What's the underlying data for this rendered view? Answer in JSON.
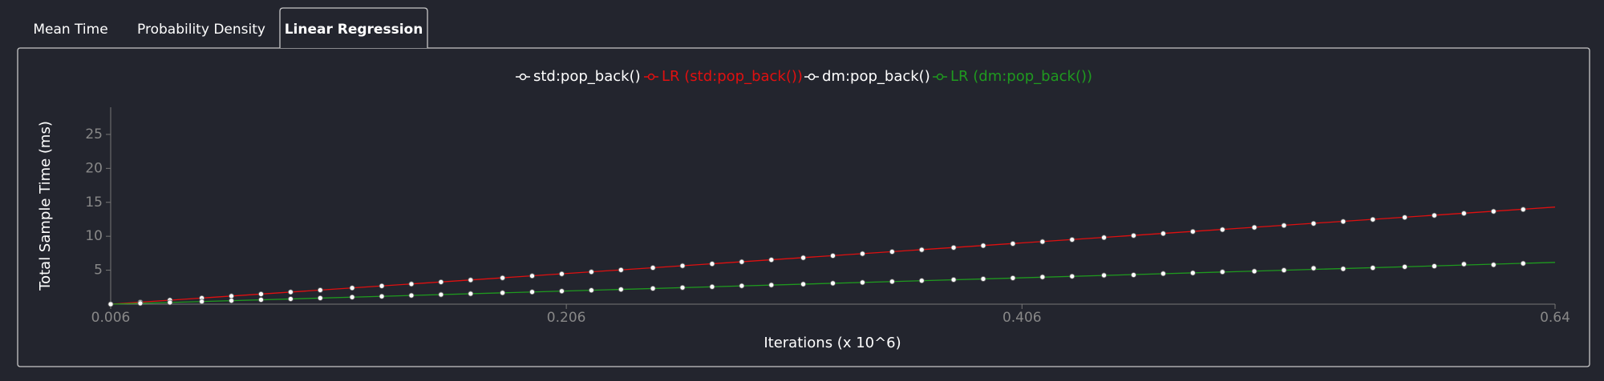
{
  "tabs": [
    "Mean Time",
    "Probability Density",
    "Linear Regression"
  ],
  "active_tab": 2,
  "chart_data": {
    "type": "scatter",
    "x_label": "Iterations (x 10^6)",
    "y_label": "Total Sample Time (ms)",
    "x": [
      0.006,
      0.019,
      0.032,
      0.046,
      0.059,
      0.072,
      0.085,
      0.098,
      0.112,
      0.125,
      0.138,
      0.151,
      0.164,
      0.178,
      0.191,
      0.204,
      0.217,
      0.23,
      0.244,
      0.257,
      0.27,
      0.283,
      0.296,
      0.31,
      0.323,
      0.336,
      0.349,
      0.362,
      0.376,
      0.389,
      0.402,
      0.415,
      0.428,
      0.442,
      0.455,
      0.468,
      0.481,
      0.494,
      0.508,
      0.521,
      0.534,
      0.547,
      0.56,
      0.574,
      0.587,
      0.6,
      0.613,
      0.626
    ],
    "series": [
      {
        "name": "std:pop_back()",
        "color": "#ffffff",
        "mode": "markers",
        "values": [
          0,
          0.29,
          0.59,
          0.9,
          1.19,
          1.49,
          1.78,
          2.07,
          2.39,
          2.68,
          2.97,
          3.26,
          3.56,
          3.87,
          4.16,
          4.46,
          4.75,
          5.04,
          5.36,
          5.65,
          5.94,
          6.23,
          6.53,
          6.84,
          7.13,
          7.43,
          7.72,
          8.01,
          8.33,
          8.62,
          8.91,
          9.2,
          9.5,
          9.81,
          10.1,
          10.4,
          10.69,
          10.98,
          11.3,
          11.59,
          11.88,
          12.17,
          12.47,
          12.78,
          13.07,
          13.37,
          13.66,
          13.95
        ]
      },
      {
        "name": "LR (std:pop_back())",
        "color": "#e01010",
        "mode": "line",
        "x": [
          0.006,
          0.64
        ],
        "values": [
          0,
          14.3
        ]
      },
      {
        "name": "dm:pop_back()",
        "color": "#ffffff",
        "mode": "markers",
        "values": [
          0,
          0.13,
          0.25,
          0.39,
          0.52,
          0.65,
          0.77,
          0.9,
          1.03,
          1.15,
          1.28,
          1.41,
          1.54,
          1.67,
          1.8,
          1.92,
          2.05,
          2.17,
          2.31,
          2.44,
          2.56,
          2.7,
          2.82,
          2.95,
          3.08,
          3.2,
          3.33,
          3.46,
          3.6,
          3.72,
          3.85,
          4.0,
          4.1,
          4.25,
          4.3,
          4.5,
          4.6,
          4.75,
          4.85,
          5.0,
          5.3,
          5.2,
          5.35,
          5.5,
          5.6,
          5.9,
          5.8,
          6.0
        ]
      },
      {
        "name": "LR (dm:pop_back())",
        "color": "#1f9a1f",
        "mode": "line",
        "x": [
          0.006,
          0.64
        ],
        "values": [
          0,
          6.15
        ]
      }
    ],
    "xlim": [
      0.006,
      0.64
    ],
    "xticks": [
      0.006,
      0.206,
      0.406,
      0.64
    ],
    "ylim": [
      0,
      29
    ],
    "yticks": [
      5,
      10,
      15,
      20,
      25
    ]
  }
}
